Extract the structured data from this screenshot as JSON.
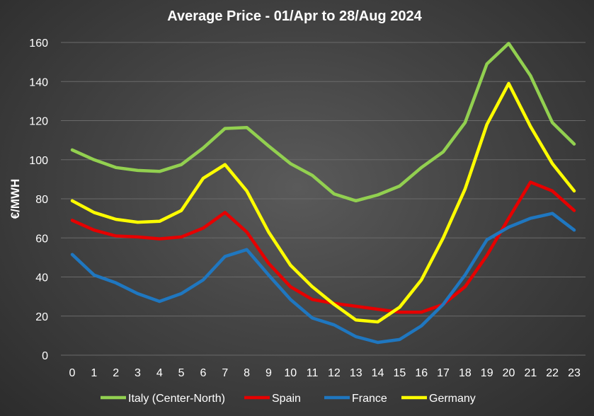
{
  "chart_data": {
    "type": "line",
    "title": "Average Price - 01/Apr to 28/Aug 2024",
    "xlabel": "",
    "ylabel": "€/MWH",
    "ylim": [
      0,
      160
    ],
    "yticks": [
      0,
      20,
      40,
      60,
      80,
      100,
      120,
      140,
      160
    ],
    "grid": true,
    "legend_position": "bottom",
    "categories": [
      "0",
      "1",
      "2",
      "3",
      "4",
      "5",
      "6",
      "7",
      "8",
      "9",
      "10",
      "11",
      "12",
      "13",
      "14",
      "15",
      "16",
      "17",
      "18",
      "19",
      "20",
      "21",
      "22",
      "23"
    ],
    "series": [
      {
        "name": "Italy (Center-North)",
        "color": "#92d050",
        "values": [
          105,
          100,
          96,
          94.5,
          94,
          97.5,
          106,
          116,
          116.5,
          107,
          98,
          92,
          82.5,
          79,
          82,
          86.5,
          96,
          104,
          119,
          149,
          159.5,
          143,
          119,
          108
        ]
      },
      {
        "name": "Spain",
        "color": "#e60000",
        "values": [
          69,
          64,
          61,
          60.5,
          59.5,
          60.5,
          65,
          73,
          63,
          47,
          35,
          28.5,
          26.5,
          25,
          23.5,
          22,
          22,
          26,
          35,
          51,
          70,
          88.5,
          84,
          74
        ]
      },
      {
        "name": "France",
        "color": "#1f77c0",
        "values": [
          51.5,
          41,
          37,
          31.5,
          27.5,
          31.5,
          38.5,
          50.5,
          54,
          41,
          28.5,
          19,
          15.5,
          9.5,
          6.5,
          8,
          15,
          26,
          41,
          59,
          65.5,
          70,
          72.5,
          64
        ]
      },
      {
        "name": "Germany",
        "color": "#ffff00",
        "values": [
          79,
          73,
          69.5,
          68,
          68.5,
          74,
          90.5,
          97.5,
          84,
          63,
          46,
          35,
          26,
          18,
          17,
          24.5,
          38.5,
          60,
          85,
          118,
          139,
          117,
          98,
          84
        ]
      }
    ]
  }
}
